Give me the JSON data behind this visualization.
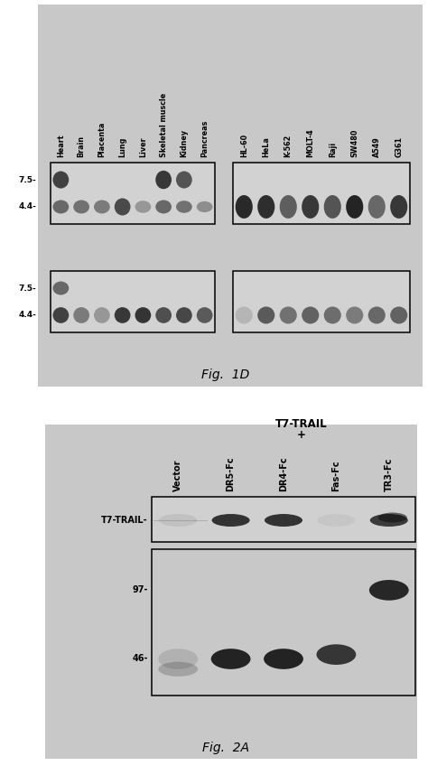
{
  "fig_width": 4.84,
  "fig_height": 8.58,
  "bg_color": "#ffffff",
  "fig1d": {
    "caption": "Fig.  1D",
    "left_labels": [
      "Heart",
      "Brain",
      "Placenta",
      "Lung",
      "Liver",
      "Skeletal muscle",
      "Kidney",
      "Pancreas"
    ],
    "right_labels": [
      "HL-60",
      "HeLa",
      "K-562",
      "MOLT-4",
      "Raji",
      "SW480",
      "A549",
      "G361"
    ],
    "yticks": [
      "7.5-",
      "4.4-"
    ],
    "panel_gray": "#c8c8c8",
    "blot_light": "#d4d4d4",
    "blot_medium": "#b8b8b8"
  },
  "fig2a": {
    "caption": "Fig.  2A",
    "col_labels": [
      "Vector",
      "DR5-Fc",
      "DR4-Fc",
      "Fas-Fc",
      "TR3-Fc"
    ],
    "header_line1": "T7-TRAIL",
    "header_line2": "+",
    "row_label_top": "T7-TRAIL-",
    "row_label_97": "97-",
    "row_label_46": "46-",
    "panel_gray": "#c8c8c8"
  }
}
